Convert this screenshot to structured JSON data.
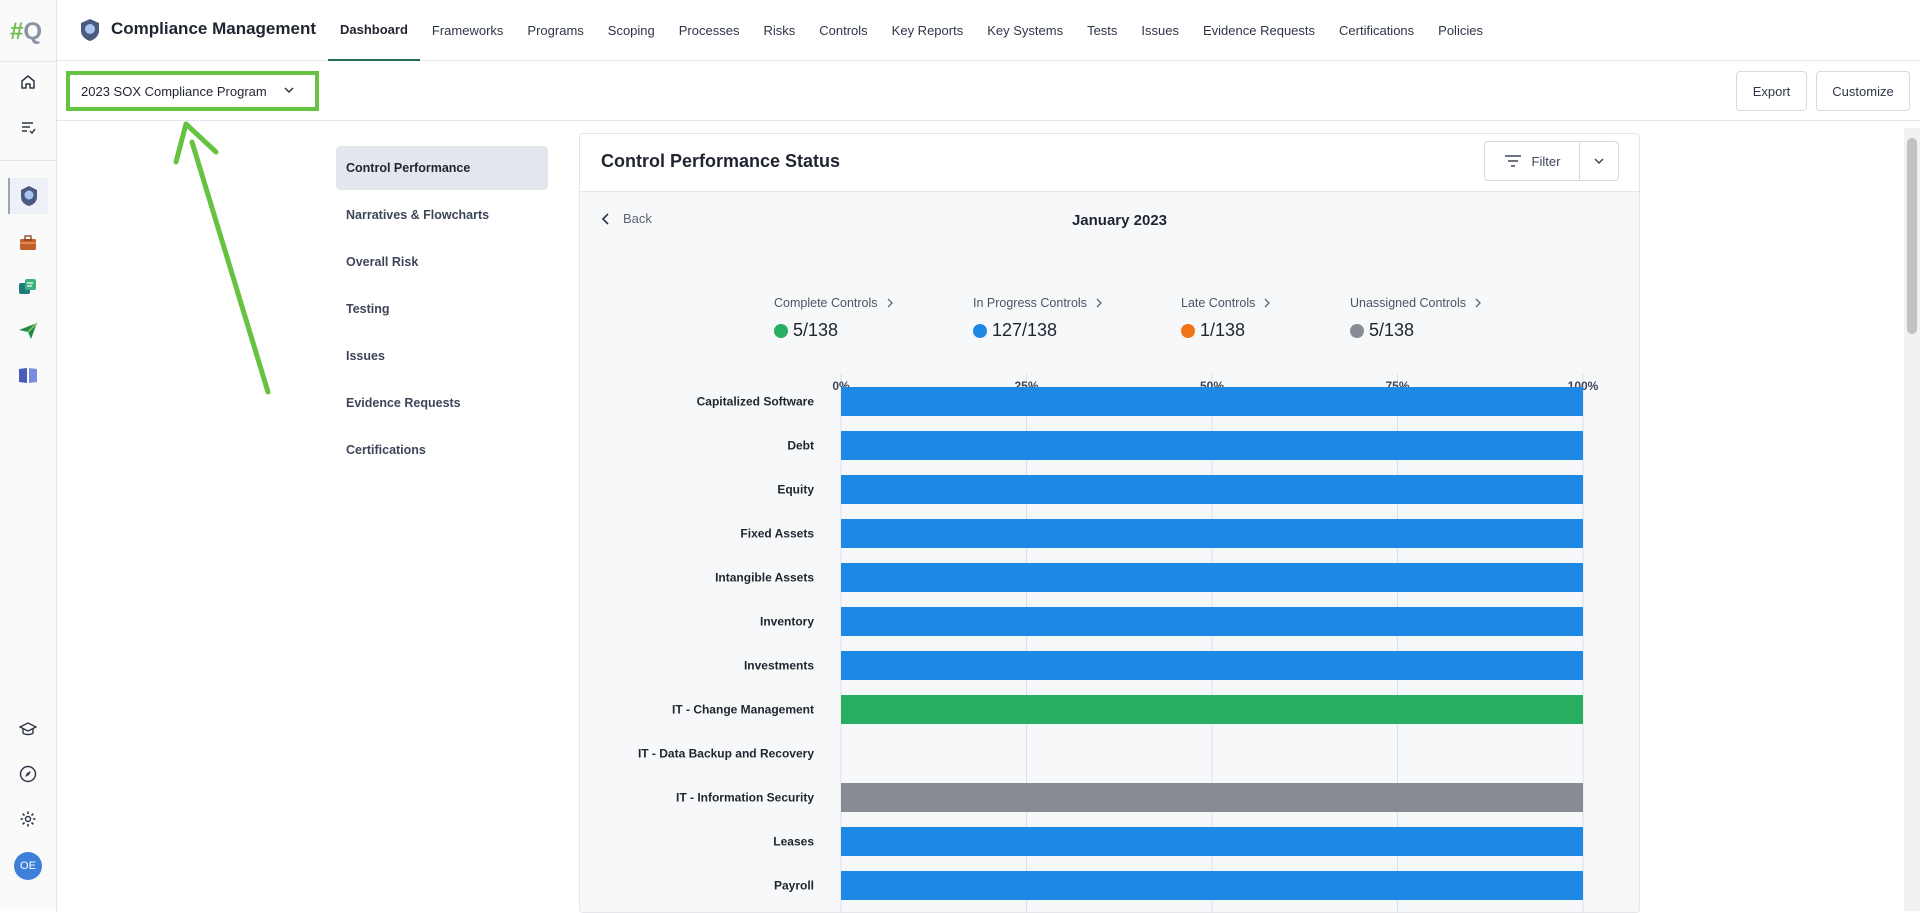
{
  "rail": {
    "logo_hash": "#",
    "logo_q": "Q",
    "avatar_initials": "OE",
    "items": [
      {
        "icon": "home-icon"
      },
      {
        "icon": "tasks-icon"
      },
      {
        "icon": "compliance-badge-icon"
      },
      {
        "icon": "briefcase-icon"
      },
      {
        "icon": "sync-icon"
      },
      {
        "icon": "send-icon"
      },
      {
        "icon": "book-icon"
      },
      {
        "icon": "academy-icon"
      },
      {
        "icon": "compass-icon"
      },
      {
        "icon": "settings-icon"
      }
    ]
  },
  "header": {
    "app_title": "Compliance Management",
    "nav": [
      "Dashboard",
      "Frameworks",
      "Programs",
      "Scoping",
      "Processes",
      "Risks",
      "Controls",
      "Key Reports",
      "Key Systems",
      "Tests",
      "Issues",
      "Evidence Requests",
      "Certifications",
      "Policies"
    ],
    "active_nav": "Dashboard"
  },
  "subbar": {
    "program": "2023 SOX Compliance Program",
    "export_label": "Export",
    "customize_label": "Customize"
  },
  "submenu": {
    "items": [
      "Control Performance",
      "Narratives & Flowcharts",
      "Overall Risk",
      "Testing",
      "Issues",
      "Evidence Requests",
      "Certifications"
    ],
    "active": "Control Performance"
  },
  "panel": {
    "title": "Control Performance Status",
    "filter_label": "Filter",
    "back_label": "Back",
    "period": "January 2023"
  },
  "stats": [
    {
      "label": "Complete Controls",
      "value": "5/138",
      "color": "#27ae60"
    },
    {
      "label": "In Progress Controls",
      "value": "127/138",
      "color": "#1e88e5"
    },
    {
      "label": "Late Controls",
      "value": "1/138",
      "color": "#f07316"
    },
    {
      "label": "Unassigned Controls",
      "value": "5/138",
      "color": "#878b93"
    }
  ],
  "colors": {
    "complete": "#27ae60",
    "in_progress": "#1e88e5",
    "late": "#f07316",
    "unassigned": "#878b93",
    "accent": "#236b55",
    "annotation": "#66c341"
  },
  "chart_data": {
    "type": "bar",
    "orientation": "horizontal",
    "stacked": true,
    "x_ticks": [
      "0%",
      "25%",
      "50%",
      "75%",
      "100%"
    ],
    "xlim": [
      0,
      100
    ],
    "categories": [
      "Capitalized Software",
      "Debt",
      "Equity",
      "Fixed Assets",
      "Intangible Assets",
      "Inventory",
      "Investments",
      "IT - Change Management",
      "IT - Data Backup and Recovery",
      "IT - Information Security",
      "Leases",
      "Payroll"
    ],
    "series": [
      {
        "key": "complete",
        "values": [
          0,
          0,
          0,
          0,
          0,
          0,
          0,
          100,
          0,
          0,
          0,
          0
        ]
      },
      {
        "key": "in_progress",
        "values": [
          100,
          100,
          100,
          100,
          100,
          100,
          100,
          0,
          0,
          0,
          100,
          100
        ]
      },
      {
        "key": "late",
        "values": [
          0,
          0,
          0,
          0,
          0,
          0,
          0,
          0,
          0,
          0,
          0,
          0
        ]
      },
      {
        "key": "unassigned",
        "values": [
          0,
          0,
          0,
          0,
          0,
          0,
          0,
          0,
          0,
          100,
          0,
          0
        ]
      }
    ]
  }
}
